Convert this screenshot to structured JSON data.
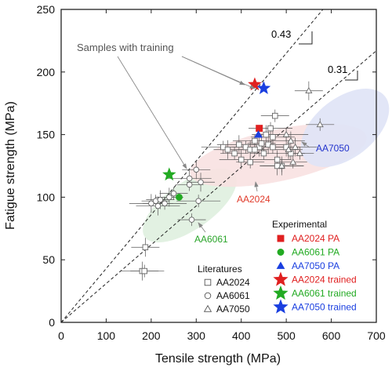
{
  "chart_data": {
    "type": "scatter",
    "xlabel": "Tensile strength (MPa)",
    "ylabel": "Fatigue strength (MPa)",
    "xlim": [
      0,
      700
    ],
    "ylim": [
      0,
      250
    ],
    "x_ticks": [
      "0",
      "100",
      "200",
      "300",
      "400",
      "500",
      "600",
      "700"
    ],
    "y_ticks": [
      "0",
      "50",
      "100",
      "150",
      "200",
      "250"
    ],
    "grid": false,
    "ratio_lines": [
      {
        "label": "0.43",
        "slope": 0.43
      },
      {
        "label": "0.31",
        "slope": 0.31
      }
    ],
    "regions": [
      {
        "name": "AA6061",
        "color": "#dff0df",
        "label_color": "#2aa52a"
      },
      {
        "name": "AA2024",
        "color": "#f8e1e1",
        "label_color": "#e03a2a"
      },
      {
        "name": "AA7050",
        "color": "#dfe3f6",
        "label_color": "#2233cc"
      }
    ],
    "annotation": "Samples with training",
    "legend_experimental": {
      "title": "Experimental",
      "entries": [
        {
          "label": "AA2024 PA",
          "marker": "square",
          "color": "#e02020"
        },
        {
          "label": "AA6061 PA",
          "marker": "circle",
          "color": "#22aa22"
        },
        {
          "label": "AA7050 PA",
          "marker": "triangle",
          "color": "#1a3fe0"
        },
        {
          "label": "AA2024 trained",
          "marker": "star",
          "color": "#e02020"
        },
        {
          "label": "AA6061 trained",
          "marker": "star",
          "color": "#22aa22"
        },
        {
          "label": "AA7050 trained",
          "marker": "star",
          "color": "#1a3fe0"
        }
      ]
    },
    "legend_literature": {
      "title": "Literatures",
      "entries": [
        {
          "label": "AA2024",
          "marker": "square"
        },
        {
          "label": "AA6061",
          "marker": "circle"
        },
        {
          "label": "AA7050",
          "marker": "triangle"
        }
      ]
    },
    "series": [
      {
        "name": "AA2024 PA",
        "marker": "square",
        "color": "#e02020",
        "points": [
          {
            "x": 440,
            "y": 155
          }
        ]
      },
      {
        "name": "AA6061 PA",
        "marker": "circle",
        "color": "#22aa22",
        "points": [
          {
            "x": 262,
            "y": 100
          }
        ]
      },
      {
        "name": "AA7050 PA",
        "marker": "triangle",
        "color": "#1a3fe0",
        "points": [
          {
            "x": 438,
            "y": 150
          }
        ]
      },
      {
        "name": "AA2024 trained",
        "marker": "star",
        "color": "#e02020",
        "points": [
          {
            "x": 430,
            "y": 190
          }
        ]
      },
      {
        "name": "AA6061 trained",
        "marker": "star",
        "color": "#22aa22",
        "points": [
          {
            "x": 240,
            "y": 118
          }
        ]
      },
      {
        "name": "AA7050 trained",
        "marker": "star",
        "color": "#1a3fe0",
        "points": [
          {
            "x": 450,
            "y": 187
          }
        ]
      },
      {
        "name": "AA2024",
        "marker": "square",
        "color": "#666666",
        "points": [
          {
            "x": 180,
            "y": 41
          },
          {
            "x": 185,
            "y": 41
          },
          {
            "x": 187,
            "y": 60
          },
          {
            "x": 360,
            "y": 140
          },
          {
            "x": 370,
            "y": 138
          },
          {
            "x": 385,
            "y": 135
          },
          {
            "x": 395,
            "y": 142
          },
          {
            "x": 410,
            "y": 140
          },
          {
            "x": 420,
            "y": 138
          },
          {
            "x": 430,
            "y": 145
          },
          {
            "x": 440,
            "y": 140
          },
          {
            "x": 450,
            "y": 135
          },
          {
            "x": 460,
            "y": 142
          },
          {
            "x": 470,
            "y": 140
          },
          {
            "x": 480,
            "y": 130
          },
          {
            "x": 490,
            "y": 125
          },
          {
            "x": 500,
            "y": 140
          },
          {
            "x": 510,
            "y": 135
          },
          {
            "x": 470,
            "y": 148
          },
          {
            "x": 475,
            "y": 165
          },
          {
            "x": 480,
            "y": 125
          },
          {
            "x": 465,
            "y": 155
          },
          {
            "x": 455,
            "y": 150
          },
          {
            "x": 420,
            "y": 128
          },
          {
            "x": 400,
            "y": 130
          },
          {
            "x": 430,
            "y": 138
          },
          {
            "x": 445,
            "y": 143
          }
        ]
      },
      {
        "name": "AA6061",
        "marker": "circle",
        "color": "#666666",
        "points": [
          {
            "x": 200,
            "y": 95
          },
          {
            "x": 210,
            "y": 97
          },
          {
            "x": 220,
            "y": 98
          },
          {
            "x": 230,
            "y": 95
          },
          {
            "x": 240,
            "y": 100
          },
          {
            "x": 250,
            "y": 103
          },
          {
            "x": 285,
            "y": 115
          },
          {
            "x": 285,
            "y": 110
          },
          {
            "x": 300,
            "y": 122
          },
          {
            "x": 305,
            "y": 97
          },
          {
            "x": 310,
            "y": 112
          },
          {
            "x": 290,
            "y": 82
          },
          {
            "x": 215,
            "y": 93
          }
        ]
      },
      {
        "name": "AA7050",
        "marker": "triangle",
        "color": "#666666",
        "points": [
          {
            "x": 520,
            "y": 140
          },
          {
            "x": 530,
            "y": 135
          },
          {
            "x": 510,
            "y": 145
          },
          {
            "x": 500,
            "y": 150
          },
          {
            "x": 550,
            "y": 185
          },
          {
            "x": 575,
            "y": 158
          },
          {
            "x": 490,
            "y": 125
          },
          {
            "x": 515,
            "y": 128
          },
          {
            "x": 505,
            "y": 138
          }
        ]
      }
    ]
  }
}
